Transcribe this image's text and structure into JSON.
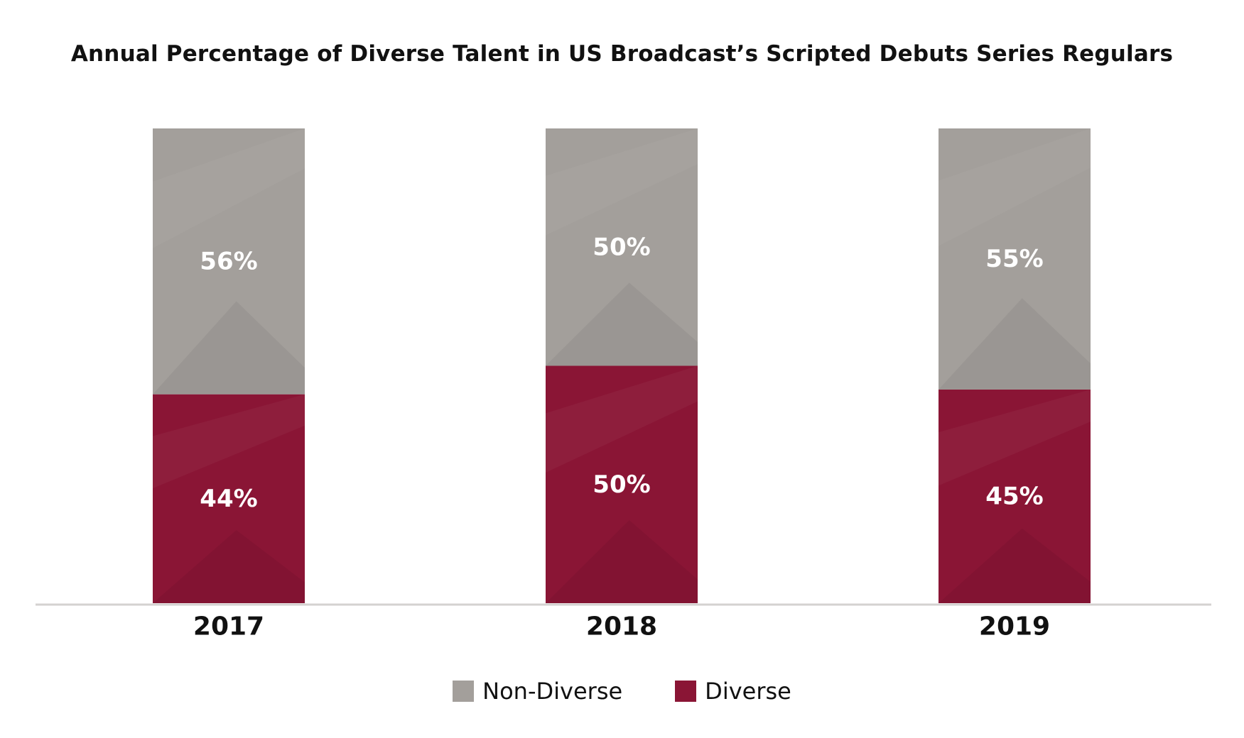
{
  "chart_data": {
    "type": "bar",
    "stacked": true,
    "title": "Annual Percentage of Diverse Talent in US Broadcast’s Scripted Debuts Series Regulars",
    "categories": [
      "2017",
      "2018",
      "2019"
    ],
    "series": [
      {
        "name": "Diverse",
        "values": [
          44,
          50,
          45
        ],
        "labels": [
          "44%",
          "50%",
          "45%"
        ],
        "color": "#8a1535"
      },
      {
        "name": "Non-Diverse",
        "values": [
          56,
          50,
          55
        ],
        "labels": [
          "56%",
          "50%",
          "55%"
        ],
        "color": "#a39f9b"
      }
    ],
    "ylim": [
      0,
      100
    ],
    "grid": false,
    "legend_position": "bottom",
    "legend": [
      {
        "name": "Non-Diverse",
        "color": "#a39f9b"
      },
      {
        "name": "Diverse",
        "color": "#8a1535"
      }
    ]
  }
}
